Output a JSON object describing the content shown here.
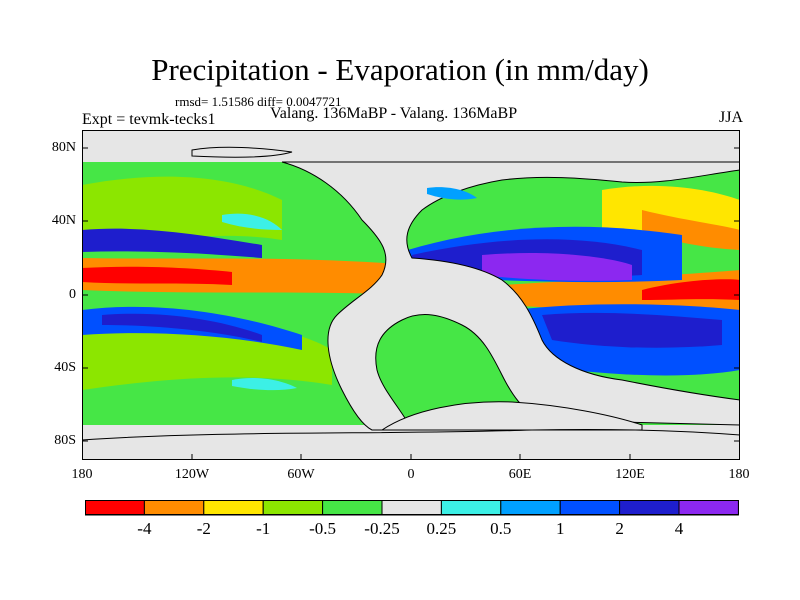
{
  "title": "Precipitation - Evaporation (in mm/day)",
  "stats": "rmsd= 1.51586 diff= 0.0047721",
  "experiment": "Expt = tevmk-tecks1",
  "comparison": "Valang. 136MaBP - Valang. 136MaBP",
  "season": "JJA",
  "lat_labels": [
    "80N",
    "40N",
    "0",
    "40S",
    "80S"
  ],
  "lon_labels": [
    "180",
    "120W",
    "60W",
    "0",
    "60E",
    "120E",
    "180"
  ],
  "colorbar": {
    "labels": [
      "-4",
      "-2",
      "-1",
      "-0.5",
      "-0.25",
      "0.25",
      "0.5",
      "1",
      "2",
      "4"
    ],
    "colors": [
      "#ff0000",
      "#ff8c00",
      "#ffe600",
      "#8ce600",
      "#46e646",
      "#e6e6e6",
      "#3cf0e6",
      "#00a0ff",
      "#0050ff",
      "#1e1ecd",
      "#8c28f0"
    ]
  },
  "colors": {
    "land": "#e6e6e6",
    "background": "#ffffff",
    "coastline": "#000000"
  }
}
